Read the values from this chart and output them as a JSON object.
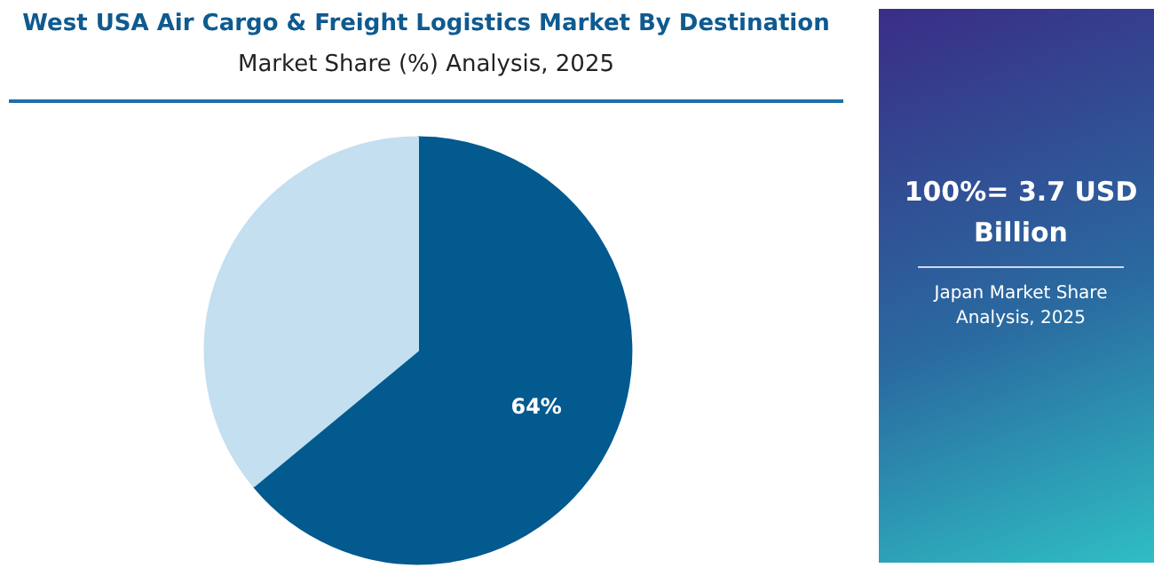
{
  "chart_data": {
    "type": "pie",
    "title": "West USA Air Cargo & Freight Logistics Market By Destination",
    "subtitle": "Market Share (%) Analysis, 2025",
    "categories": [
      null,
      null
    ],
    "values": [
      64,
      36
    ],
    "colors": [
      "#035a8f",
      "#c3dff0"
    ],
    "value_labels": [
      "64%",
      null
    ],
    "annotations": [
      "100%= 3.7 USD Billion",
      "Japan Market Share Analysis, 2025"
    ]
  }
}
